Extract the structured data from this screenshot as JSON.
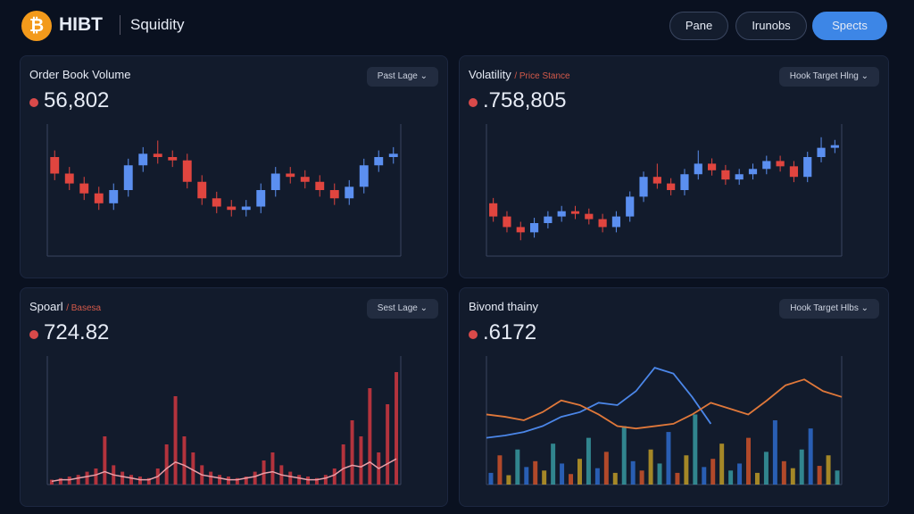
{
  "header": {
    "logo": "HIBT",
    "app": "Squidity",
    "buttons": [
      "Pane",
      "Irunobs",
      "Spects"
    ]
  },
  "panels": [
    {
      "title": "Order Book Volume",
      "dropdown": "Past Lage",
      "value": "56,802",
      "chart": {
        "type": "candlestick",
        "ylim": [
          0,
          80
        ],
        "open": [
          60,
          50,
          44,
          38,
          32,
          40,
          55,
          62,
          60,
          58,
          45,
          35,
          30,
          28,
          30,
          40,
          50,
          48,
          45,
          40,
          35,
          42,
          55,
          60
        ],
        "close": [
          50,
          44,
          38,
          32,
          40,
          55,
          62,
          60,
          58,
          45,
          35,
          30,
          28,
          30,
          40,
          50,
          48,
          45,
          40,
          35,
          42,
          55,
          60,
          62
        ],
        "high": [
          64,
          54,
          48,
          42,
          44,
          59,
          66,
          70,
          64,
          62,
          49,
          39,
          34,
          34,
          44,
          54,
          54,
          52,
          49,
          44,
          46,
          59,
          64,
          66
        ],
        "low": [
          46,
          40,
          34,
          28,
          28,
          36,
          51,
          56,
          54,
          41,
          31,
          26,
          24,
          24,
          26,
          36,
          44,
          41,
          36,
          31,
          31,
          38,
          51,
          56
        ]
      }
    },
    {
      "title": "Volatility",
      "subtitle": "/ Price Stance",
      "dropdown": "Hook Target Hlng",
      "value": ".758,805",
      "chart": {
        "type": "candlestick",
        "ylim": [
          0,
          100
        ],
        "open": [
          40,
          30,
          22,
          18,
          25,
          30,
          34,
          32,
          28,
          22,
          30,
          45,
          60,
          55,
          50,
          62,
          70,
          65,
          58,
          62,
          66,
          72,
          68,
          60,
          75,
          82
        ],
        "close": [
          30,
          22,
          18,
          25,
          30,
          34,
          32,
          28,
          22,
          30,
          45,
          60,
          55,
          50,
          62,
          70,
          65,
          58,
          62,
          66,
          72,
          68,
          60,
          75,
          82,
          84
        ],
        "high": [
          44,
          34,
          26,
          29,
          34,
          38,
          38,
          36,
          32,
          34,
          49,
          64,
          70,
          59,
          66,
          80,
          74,
          69,
          66,
          70,
          76,
          76,
          72,
          79,
          90,
          88
        ],
        "low": [
          26,
          18,
          12,
          14,
          21,
          26,
          28,
          24,
          18,
          18,
          26,
          41,
          51,
          46,
          46,
          58,
          61,
          54,
          54,
          58,
          62,
          64,
          56,
          56,
          71,
          78
        ]
      }
    },
    {
      "title": "Spoarl",
      "subtitle": "/ Basesa",
      "dropdown": "Sest Lage",
      "value": "724.82",
      "chart": {
        "type": "bar",
        "ylim": [
          0,
          80
        ],
        "color": "#b3333d",
        "line_color": "#e9a0a8",
        "values": [
          3,
          4,
          5,
          6,
          8,
          10,
          30,
          12,
          8,
          6,
          5,
          4,
          10,
          25,
          55,
          30,
          20,
          12,
          8,
          6,
          5,
          4,
          5,
          8,
          15,
          20,
          12,
          8,
          6,
          5,
          4,
          6,
          10,
          25,
          40,
          30,
          60,
          20,
          50,
          70
        ],
        "trend": [
          2,
          3,
          3,
          4,
          5,
          6,
          8,
          6,
          5,
          4,
          3,
          3,
          5,
          10,
          14,
          12,
          9,
          6,
          5,
          4,
          3,
          3,
          4,
          5,
          7,
          8,
          6,
          5,
          4,
          3,
          3,
          4,
          6,
          10,
          12,
          11,
          14,
          10,
          13,
          16
        ]
      }
    },
    {
      "title": "Bivond thainy",
      "dropdown": "Hook Target Hlbs",
      "value": ".6172",
      "chart": {
        "type": "combo",
        "ylim": [
          0,
          110
        ],
        "colors": [
          "#2f6fd6",
          "#d9552b",
          "#c9a227",
          "#3aa0a8"
        ],
        "bars": [
          10,
          25,
          8,
          30,
          15,
          20,
          12,
          35,
          18,
          9,
          22,
          40,
          14,
          28,
          10,
          50,
          20,
          12,
          30,
          18,
          45,
          10,
          25,
          60,
          15,
          22,
          35,
          12,
          18,
          40,
          10,
          28,
          55,
          20,
          14,
          30,
          48,
          16,
          25,
          12
        ],
        "series": [
          {
            "color": "#4b86e8",
            "values": [
              40,
              42,
              45,
              50,
              58,
              62,
              70,
              68,
              80,
              100,
              95,
              75,
              52,
              null,
              null,
              null,
              null,
              null,
              null,
              null
            ]
          },
          {
            "color": "#e0783a",
            "values": [
              60,
              58,
              55,
              62,
              72,
              68,
              60,
              50,
              48,
              50,
              52,
              60,
              70,
              65,
              60,
              72,
              85,
              90,
              80,
              75
            ]
          }
        ]
      }
    }
  ]
}
